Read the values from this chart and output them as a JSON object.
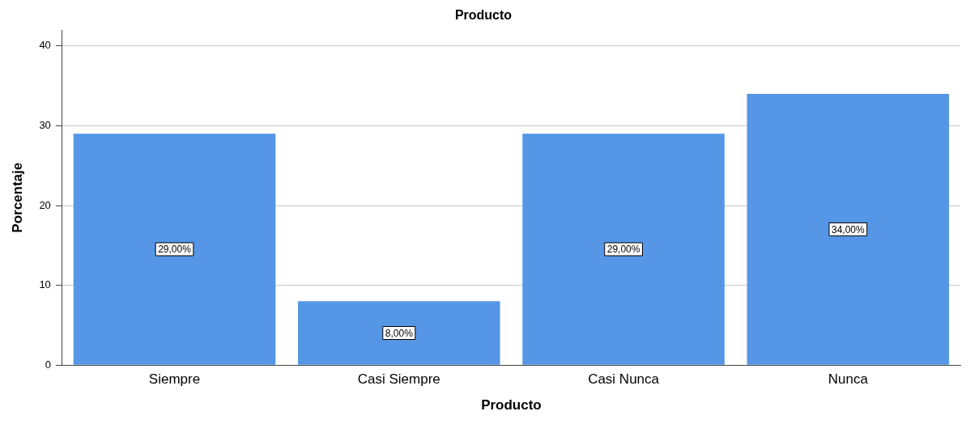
{
  "chart_data": {
    "type": "bar",
    "title": "Producto",
    "xlabel": "Producto",
    "ylabel": "Porcentaje",
    "categories": [
      "Siempre",
      "Casi Siempre",
      "Casi Nunca",
      "Nunca"
    ],
    "values": [
      29,
      8,
      29,
      34
    ],
    "value_labels": [
      "29,00%",
      "8,00%",
      "29,00%",
      "34,00%"
    ],
    "color": "#5596e6",
    "ylim": [
      0,
      42
    ],
    "yticks": [
      0,
      10,
      20,
      30,
      40
    ],
    "grid": "y",
    "legend": false
  }
}
